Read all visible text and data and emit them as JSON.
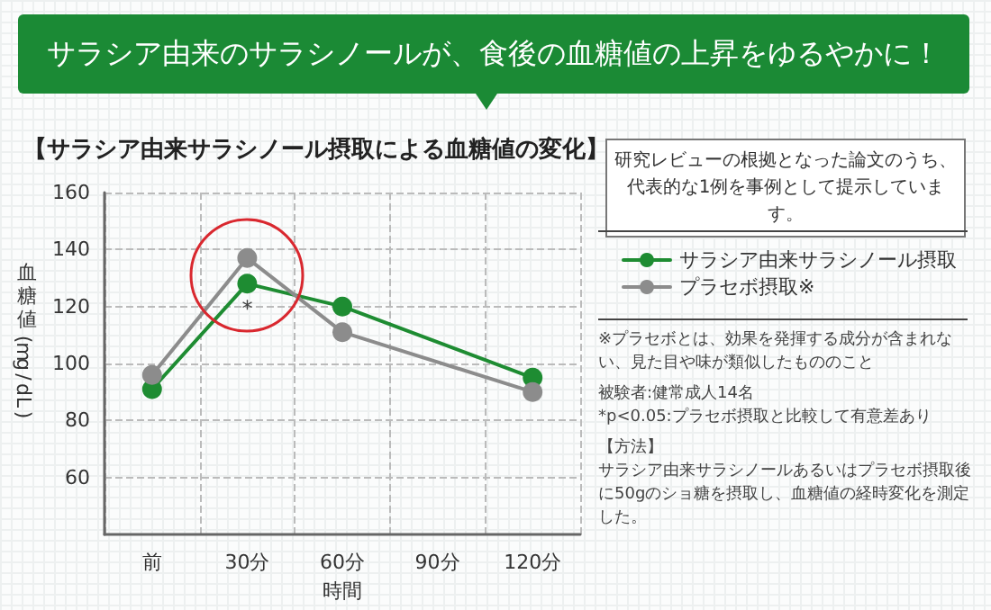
{
  "chart_data": {
    "type": "line",
    "title": "サラシア由来のサラシノールが、食後の血糖値の上昇をゆるやかに！",
    "subtitle": "【サラシア由来サラシノール摂取による血糖値の変化】",
    "xlabel": "時間",
    "ylabel": "血糖値(mg/dL)",
    "categories": [
      "前",
      "30分",
      "60分",
      "90分",
      "120分"
    ],
    "series": [
      {
        "name": "サラシア由来サラシノール摂取",
        "color": "#1e8c32",
        "values": [
          91,
          128,
          120,
          null,
          95
        ]
      },
      {
        "name": "プラセボ摂取※",
        "color": "#8c8c8c",
        "values": [
          96,
          137,
          111,
          null,
          90
        ]
      }
    ],
    "ylim": [
      40,
      160
    ],
    "yticks": [
      60,
      80,
      100,
      120,
      140,
      160
    ],
    "grid": true,
    "legend": "right",
    "marker": "circle",
    "line_style": "solid",
    "annotations": [
      "研究レビューの根拠となった論文のうち、代表的な1例を事例として提示しています。",
      "※プラセボとは、効果を発揮する成分が含まれない、見た目や味が類似したもののこと",
      "被験者:健常成人14名",
      "*p<0.05:プラセボ摂取と比較して有意差あり",
      "【方法】",
      "サラシア由来サラシノールあるいはプラセボ摂取後に50gのショ糖を摂取し、血糖値の経時変化を測定した。",
      {
        "text": "*",
        "x": "30分",
        "y": 128
      }
    ]
  }
}
